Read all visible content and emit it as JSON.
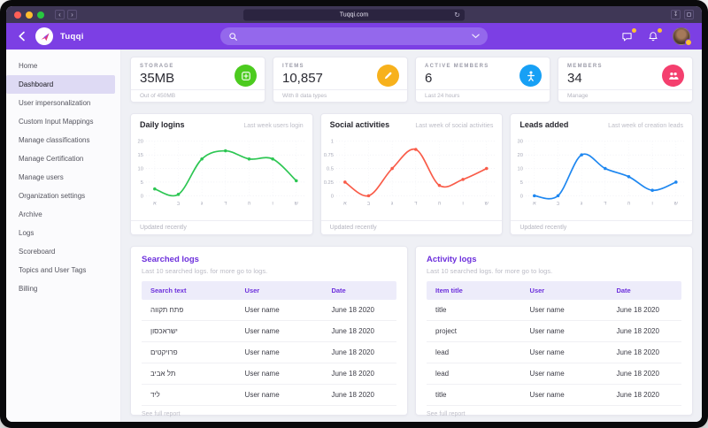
{
  "browser": {
    "url": "Tuqqi.com"
  },
  "header": {
    "app_name": "Tuqqi",
    "search_value": "",
    "search_placeholder": ""
  },
  "theme": {
    "header_purple": "#7c3fe4",
    "search_purple": "#9468ec",
    "accent_purple": "#6d30dc",
    "badge_yellow": "#ffc233"
  },
  "sidebar": {
    "items": [
      {
        "label": "Home",
        "active": false
      },
      {
        "label": "Dashboard",
        "active": true
      },
      {
        "label": "User impersonalization",
        "active": false
      },
      {
        "label": "Custom Input Mappings",
        "active": false
      },
      {
        "label": "Manage classifications",
        "active": false
      },
      {
        "label": "Manage Certification",
        "active": false
      },
      {
        "label": "Manage users",
        "active": false
      },
      {
        "label": "Organization settings",
        "active": false
      },
      {
        "label": "Archive",
        "active": false
      },
      {
        "label": "Logs",
        "active": false
      },
      {
        "label": "Scoreboard",
        "active": false
      },
      {
        "label": "Topics and User Tags",
        "active": false
      },
      {
        "label": "Billing",
        "active": false
      }
    ]
  },
  "stats": [
    {
      "label": "STORAGE",
      "value": "35MB",
      "footer": "Out of 450MB",
      "icon": "storage-icon",
      "color": "#4ccb1f"
    },
    {
      "label": "ITEMS",
      "value": "10,857",
      "footer": "With 8 data types",
      "icon": "pencil-icon",
      "color": "#f7b11c"
    },
    {
      "label": "ACTIVE MEMBERS",
      "value": "6",
      "footer": "Last 24 hours",
      "icon": "person-icon",
      "color": "#17a0f5"
    },
    {
      "label": "MEMBERS",
      "value": "34",
      "footer": "Manage",
      "icon": "group-icon",
      "color": "#f43f6e"
    }
  ],
  "chart_data": [
    {
      "type": "line",
      "title": "Daily logins",
      "subtitle": "Last week users login",
      "footer": "Updated recently",
      "color": "#2dc653",
      "x_labels": [
        "א",
        "ב",
        "ג",
        "ד",
        "ה",
        "ו",
        "ש"
      ],
      "y_ticks": [
        20,
        15,
        10,
        5,
        0
      ],
      "ylim": [
        0,
        20
      ],
      "values": [
        2.5,
        0.5,
        13.5,
        16.5,
        13.5,
        13.5,
        5.5
      ],
      "grid": true,
      "legend": "none"
    },
    {
      "type": "line",
      "title": "Social activities",
      "subtitle": "Last week of social activities",
      "footer": "Updated recently",
      "color": "#f95c49",
      "x_labels": [
        "א",
        "ב",
        "ג",
        "ד",
        "ה",
        "ו",
        "ש"
      ],
      "y_ticks": [
        1,
        0.75,
        0.5,
        0.25,
        0
      ],
      "ylim": [
        0,
        1
      ],
      "values": [
        0.25,
        0,
        0.5,
        0.85,
        0.19,
        0.3,
        0.5
      ],
      "grid": true,
      "legend": "none"
    },
    {
      "type": "line",
      "title": "Leads added",
      "subtitle": "Last week of creation leads",
      "footer": "Updated recently",
      "color": "#1e87f0",
      "x_labels": [
        "א",
        "ב",
        "ג",
        "ד",
        "ה",
        "ו",
        "ש"
      ],
      "y_ticks": [
        30,
        20,
        10,
        5,
        0
      ],
      "ylim": [
        0,
        30
      ],
      "values": [
        0,
        0,
        20,
        10,
        7,
        2,
        5
      ],
      "grid": true,
      "legend": "none"
    }
  ],
  "tables": [
    {
      "title": "Searched logs",
      "subtitle": "Last 10 searched logs. for more go to logs.",
      "columns": [
        "Search text",
        "User",
        "Date"
      ],
      "rows": [
        [
          "פתח תקווה",
          "User name",
          "June 18 2020"
        ],
        [
          "ישראכסון",
          "User name",
          "June 18 2020"
        ],
        [
          "פרויקטים",
          "User name",
          "June 18 2020"
        ],
        [
          "תל אביב",
          "User name",
          "June 18 2020"
        ],
        [
          "ליד",
          "User name",
          "June 18 2020"
        ]
      ],
      "footer": "See full report"
    },
    {
      "title": "Activity logs",
      "subtitle": "Last 10 searched logs. for more go to logs.",
      "columns": [
        "Item title",
        "User",
        "Date"
      ],
      "rows": [
        [
          "title",
          "User name",
          "June 18 2020"
        ],
        [
          "project",
          "User name",
          "June 18 2020"
        ],
        [
          "lead",
          "User name",
          "June 18 2020"
        ],
        [
          "lead",
          "User name",
          "June 18 2020"
        ],
        [
          "title",
          "User name",
          "June 18 2020"
        ]
      ],
      "footer": "See full report"
    }
  ]
}
